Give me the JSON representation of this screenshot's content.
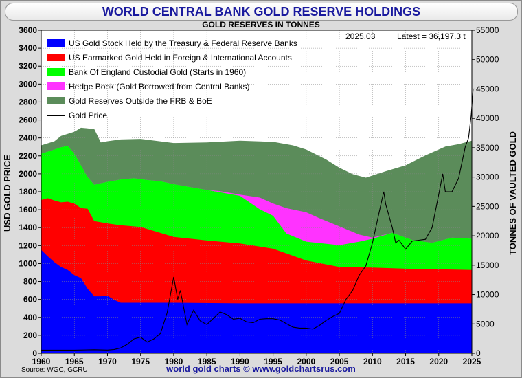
{
  "header": {
    "title": "WORLD CENTRAL BANK GOLD RESERVE HOLDINGS",
    "subtitle": "GOLD RESERVES IN TONNES"
  },
  "info": {
    "date": "2025.03",
    "latest": "Latest = 36,197.3 t"
  },
  "footer": {
    "source": "Source: WGC, GCRU",
    "site": "world gold charts © www.goldchartsrus.com"
  },
  "colors": {
    "us": "#0000ff",
    "earmarked": "#ff0000",
    "boe": "#00ff00",
    "hedge": "#ff33ff",
    "outside": "#5b8c5a",
    "price": "#000000"
  },
  "chart_data": {
    "type": "area",
    "title": "WORLD CENTRAL BANK GOLD RESERVE HOLDINGS",
    "subtitle": "GOLD RESERVES IN TONNES",
    "ylabel_left": "USD GOLD PRICE",
    "ylabel_right": "TONNES OF VAULTED GOLD",
    "xlim": [
      1960,
      2025
    ],
    "ylim_left": [
      0,
      3600
    ],
    "ylim_right": [
      0,
      55000
    ],
    "x_ticks": [
      "1960",
      "1965",
      "1970",
      "1975",
      "1980",
      "1985",
      "1990",
      "1995",
      "2000",
      "2005",
      "2010",
      "2015",
      "2020",
      "2025"
    ],
    "y_ticks_left": [
      "0",
      "200",
      "400",
      "600",
      "800",
      "1000",
      "1200",
      "1400",
      "1600",
      "1800",
      "2000",
      "2200",
      "2400",
      "2600",
      "2800",
      "3000",
      "3200",
      "3400",
      "3600"
    ],
    "y_ticks_right": [
      "0",
      "5000",
      "10000",
      "15000",
      "20000",
      "25000",
      "30000",
      "35000",
      "40000",
      "45000",
      "50000",
      "55000"
    ],
    "legend": [
      "US Gold Stock Held by the Treasury & Federal Reserve Banks",
      "US Earmarked Gold Held in Foreign & International Accounts",
      "Bank Of England Custodial Gold (Starts in 1960)",
      "Hedge Book (Gold Borrowed from Central Banks)",
      "Gold Reserves Outside the FRB & BoE",
      "Gold Price"
    ],
    "stack_series": [
      {
        "name": "US Gold Stock Held by the Treasury & Federal Reserve Banks",
        "color": "#0000ff",
        "points": [
          [
            1960,
            17600
          ],
          [
            1961,
            16500
          ],
          [
            1962,
            15500
          ],
          [
            1963,
            14700
          ],
          [
            1964,
            14200
          ],
          [
            1965,
            13300
          ],
          [
            1966,
            12800
          ],
          [
            1967,
            11000
          ],
          [
            1968,
            9700
          ],
          [
            1969,
            9700
          ],
          [
            1970,
            9800
          ],
          [
            1971,
            9100
          ],
          [
            1972,
            8600
          ],
          [
            1973,
            8600
          ],
          [
            1980,
            8600
          ],
          [
            1990,
            8500
          ],
          [
            2000,
            8500
          ],
          [
            2025,
            8500
          ]
        ]
      },
      {
        "name": "US Earmarked Gold Held in Foreign & International Accounts",
        "color": "#ff0000",
        "points": [
          [
            1960,
            26100
          ],
          [
            1961,
            26400
          ],
          [
            1962,
            26000
          ],
          [
            1963,
            25700
          ],
          [
            1964,
            25800
          ],
          [
            1965,
            25500
          ],
          [
            1966,
            24700
          ],
          [
            1967,
            24600
          ],
          [
            1968,
            22500
          ],
          [
            1969,
            22300
          ],
          [
            1970,
            22100
          ],
          [
            1972,
            21800
          ],
          [
            1975,
            21500
          ],
          [
            1980,
            19800
          ],
          [
            1985,
            19200
          ],
          [
            1990,
            18700
          ],
          [
            1995,
            17800
          ],
          [
            2000,
            15800
          ],
          [
            2005,
            14700
          ],
          [
            2010,
            14600
          ],
          [
            2015,
            14400
          ],
          [
            2020,
            14300
          ],
          [
            2025,
            14200
          ]
        ]
      },
      {
        "name": "Bank Of England Custodial Gold (Starts in 1960)",
        "color": "#00ff00",
        "points": [
          [
            1960,
            34000
          ],
          [
            1962,
            34700
          ],
          [
            1963,
            35100
          ],
          [
            1964,
            35300
          ],
          [
            1965,
            34000
          ],
          [
            1966,
            32000
          ],
          [
            1967,
            30000
          ],
          [
            1968,
            28700
          ],
          [
            1970,
            29200
          ],
          [
            1972,
            29600
          ],
          [
            1974,
            29800
          ],
          [
            1976,
            29500
          ],
          [
            1978,
            29300
          ],
          [
            1980,
            28800
          ],
          [
            1985,
            27800
          ],
          [
            1990,
            26800
          ],
          [
            1993,
            24500
          ],
          [
            1995,
            23400
          ],
          [
            1997,
            20400
          ],
          [
            2000,
            19000
          ],
          [
            2005,
            18400
          ],
          [
            2008,
            19000
          ],
          [
            2010,
            19500
          ],
          [
            2013,
            20500
          ],
          [
            2016,
            19300
          ],
          [
            2019,
            18800
          ],
          [
            2022,
            19700
          ],
          [
            2025,
            19500
          ]
        ]
      },
      {
        "name": "Hedge Book (Gold Borrowed from Central Banks)",
        "color": "#ff33ff",
        "points": [
          [
            1960,
            34000
          ],
          [
            1962,
            34700
          ],
          [
            1963,
            35100
          ],
          [
            1964,
            35300
          ],
          [
            1965,
            34000
          ],
          [
            1966,
            32000
          ],
          [
            1967,
            30000
          ],
          [
            1968,
            28700
          ],
          [
            1970,
            29200
          ],
          [
            1972,
            29600
          ],
          [
            1974,
            29800
          ],
          [
            1976,
            29500
          ],
          [
            1978,
            29300
          ],
          [
            1980,
            28800
          ],
          [
            1985,
            27800
          ],
          [
            1987,
            27600
          ],
          [
            1990,
            27000
          ],
          [
            1993,
            26500
          ],
          [
            1995,
            25500
          ],
          [
            1997,
            24700
          ],
          [
            2000,
            24000
          ],
          [
            2002,
            23000
          ],
          [
            2005,
            21600
          ],
          [
            2008,
            20200
          ],
          [
            2010,
            19700
          ],
          [
            2013,
            20500
          ],
          [
            2016,
            19300
          ],
          [
            2019,
            18800
          ],
          [
            2022,
            19700
          ],
          [
            2025,
            19500
          ]
        ]
      },
      {
        "name": "Gold Reserves Outside the FRB & BoE",
        "color": "#5b8c5a",
        "points": [
          [
            1960,
            35400
          ],
          [
            1962,
            36100
          ],
          [
            1963,
            37000
          ],
          [
            1965,
            37700
          ],
          [
            1966,
            38400
          ],
          [
            1968,
            38200
          ],
          [
            1969,
            35900
          ],
          [
            1970,
            36100
          ],
          [
            1972,
            36400
          ],
          [
            1975,
            36500
          ],
          [
            1980,
            35800
          ],
          [
            1985,
            35900
          ],
          [
            1990,
            36200
          ],
          [
            1995,
            36000
          ],
          [
            1998,
            35400
          ],
          [
            2000,
            34700
          ],
          [
            2003,
            33000
          ],
          [
            2005,
            31600
          ],
          [
            2007,
            30500
          ],
          [
            2009,
            29900
          ],
          [
            2012,
            31000
          ],
          [
            2015,
            32000
          ],
          [
            2018,
            33700
          ],
          [
            2021,
            35200
          ],
          [
            2023,
            35600
          ],
          [
            2025,
            36197
          ]
        ]
      }
    ],
    "price_series": {
      "name": "Gold Price",
      "points": [
        [
          1960,
          35
        ],
        [
          1965,
          35
        ],
        [
          1968,
          40
        ],
        [
          1970,
          36
        ],
        [
          1971,
          42
        ],
        [
          1972,
          60
        ],
        [
          1973,
          100
        ],
        [
          1974,
          160
        ],
        [
          1975,
          180
        ],
        [
          1976,
          125
        ],
        [
          1977,
          160
        ],
        [
          1978,
          220
        ],
        [
          1979,
          450
        ],
        [
          1980,
          850
        ],
        [
          1980.6,
          600
        ],
        [
          1981,
          700
        ],
        [
          1982,
          320
        ],
        [
          1983,
          480
        ],
        [
          1984,
          360
        ],
        [
          1985,
          320
        ],
        [
          1986,
          390
        ],
        [
          1987,
          460
        ],
        [
          1988,
          430
        ],
        [
          1989,
          380
        ],
        [
          1990,
          390
        ],
        [
          1991,
          350
        ],
        [
          1992,
          340
        ],
        [
          1993,
          380
        ],
        [
          1994,
          385
        ],
        [
          1995,
          385
        ],
        [
          1996,
          370
        ],
        [
          1997,
          330
        ],
        [
          1998,
          290
        ],
        [
          1999,
          280
        ],
        [
          2000,
          280
        ],
        [
          2001,
          270
        ],
        [
          2002,
          310
        ],
        [
          2003,
          365
        ],
        [
          2004,
          410
        ],
        [
          2005,
          445
        ],
        [
          2006,
          600
        ],
        [
          2007,
          700
        ],
        [
          2008,
          870
        ],
        [
          2009,
          975
        ],
        [
          2010,
          1230
        ],
        [
          2011,
          1570
        ],
        [
          2011.7,
          1800
        ],
        [
          2012,
          1660
        ],
        [
          2013,
          1400
        ],
        [
          2013.5,
          1230
        ],
        [
          2014,
          1260
        ],
        [
          2015,
          1160
        ],
        [
          2016,
          1250
        ],
        [
          2017,
          1260
        ],
        [
          2018,
          1270
        ],
        [
          2019,
          1400
        ],
        [
          2020,
          1770
        ],
        [
          2020.6,
          2000
        ],
        [
          2021,
          1800
        ],
        [
          2022,
          1800
        ],
        [
          2023,
          1950
        ],
        [
          2024,
          2300
        ],
        [
          2024.5,
          2400
        ],
        [
          2024.9,
          2650
        ],
        [
          2025.2,
          2950
        ]
      ]
    }
  }
}
